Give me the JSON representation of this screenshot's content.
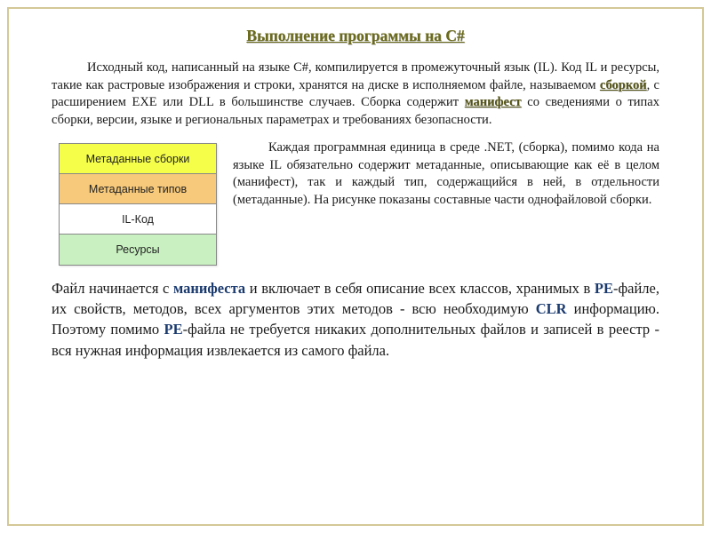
{
  "title": "Выполнение программы на C#",
  "para1_pre": "Исходный код, написанный на языке C#, компилируется в промежуточный язык (IL). Код IL и ресурсы, такие как растровые изображения и строки, хранятся на диске в исполняемом файле, называемом ",
  "para1_kw1": "сборкой",
  "para1_mid": ", с расширением EXE или DLL в большинстве случаев. Сборка содержит ",
  "para1_kw2": "манифест",
  "para1_post": " со сведениями о типах сборки, версии, языке и региональных параметрах и требованиях безопасности.",
  "diagram": {
    "rows": [
      {
        "label": "Метаданные сборки",
        "bg": "#f5ff4a"
      },
      {
        "label": "Метаданные типов",
        "bg": "#f7c97a"
      },
      {
        "label": "IL-Код",
        "bg": "#ffffff"
      },
      {
        "label": "Ресурсы",
        "bg": "#c8f0c0"
      }
    ],
    "border_color": "#888888"
  },
  "para2": "Каждая программная единица в среде .NET, (сборка), помимо кода на языке IL обязательно содержит метаданные, описывающие как её в целом (манифест), так и каждый тип, содержащийся в ней, в отдельности (метаданные). На рисунке показаны составные части однофайловой сборки.",
  "para3_s1": "Файл начинается с ",
  "para3_kw1": "манифеста",
  "para3_s2": " и включает в себя описание всех классов, хранимых в ",
  "para3_kw2": "PE",
  "para3_s3": "-файле, их свойств, методов, всех аргументов этих методов - всю необходимую ",
  "para3_kw3": "CLR",
  "para3_s4": " информацию. Поэтому помимо ",
  "para3_kw4": "PE",
  "para3_s5": "-файла не требуется никаких дополнительных файлов и записей в реестр - вся нужная информация извлекается из самого файла.",
  "colors": {
    "frame_border": "#d4c896",
    "title_color": "#6b6b1a",
    "kw_olive": "#555518",
    "kw_navy": "#1a3a6e",
    "body_text": "#1a1a1a",
    "background": "#ffffff"
  },
  "fonts": {
    "body_family": "Georgia/Times serif",
    "diagram_family": "Arial sans-serif",
    "title_size_pt": 13,
    "body_size_pt": 11,
    "para3_size_pt": 12.5,
    "diagram_size_pt": 9.5
  }
}
